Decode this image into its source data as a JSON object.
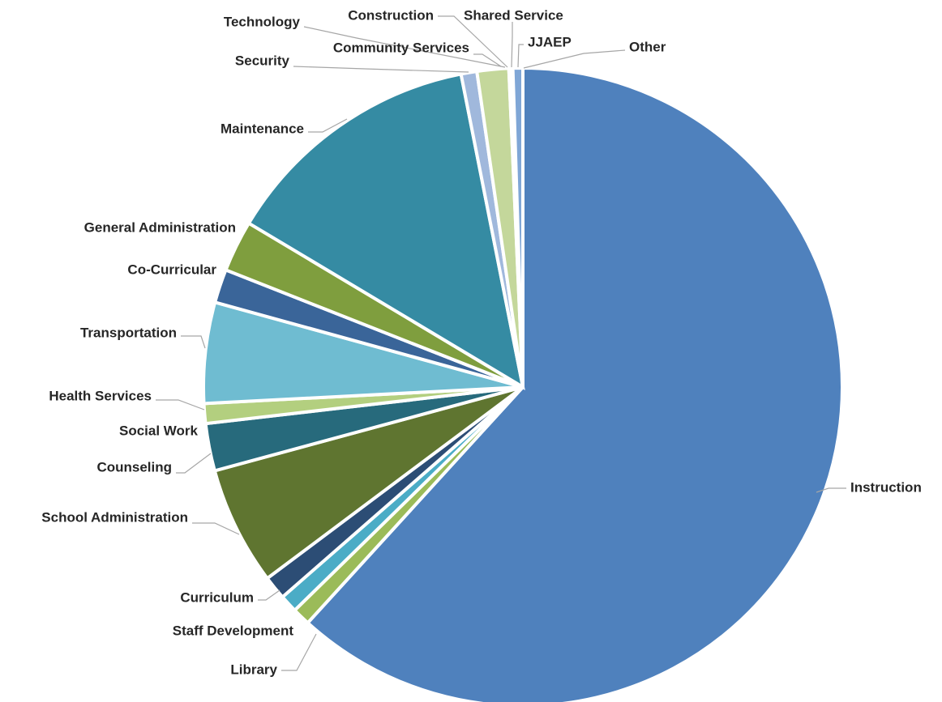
{
  "chart_data": {
    "type": "pie",
    "title": "",
    "start_angle_deg": 0,
    "direction": "clockwise",
    "slices": [
      {
        "label": "Instruction",
        "value": 61.7,
        "color": "#4f81bd"
      },
      {
        "label": "Library",
        "value": 0.9,
        "color": "#9bbb59"
      },
      {
        "label": "Staff Development",
        "value": 0.9,
        "color": "#4bacc6"
      },
      {
        "label": "Curriculum",
        "value": 1.2,
        "color": "#2c4d75"
      },
      {
        "label": "School Administration",
        "value": 6.0,
        "color": "#5f7530"
      },
      {
        "label": "Counseling",
        "value": 2.4,
        "color": "#276a7c"
      },
      {
        "label": "Social Work",
        "value": 0.0,
        "color": "#b9cde5"
      },
      {
        "label": "Health Services",
        "value": 1.0,
        "color": "#b3cf7f"
      },
      {
        "label": "Transportation",
        "value": 5.1,
        "color": "#6fbcd1"
      },
      {
        "label": "Co-Curricular",
        "value": 1.7,
        "color": "#3a6599"
      },
      {
        "label": "General Administration",
        "value": 2.6,
        "color": "#7f9e3e"
      },
      {
        "label": "Maintenance",
        "value": 13.3,
        "color": "#358ba3"
      },
      {
        "label": "Security",
        "value": 0.8,
        "color": "#a0b8dc"
      },
      {
        "label": "Technology",
        "value": 0.0,
        "color": "#ccdcae"
      },
      {
        "label": "Community Services",
        "value": 1.6,
        "color": "#c4d79b"
      },
      {
        "label": "Construction",
        "value": 0.0,
        "color": "#4f81bd"
      },
      {
        "label": "Shared Service",
        "value": 0.1,
        "color": "#9bbb59"
      },
      {
        "label": "JJAEP",
        "value": 0.1,
        "color": "#4bacc6"
      },
      {
        "label": "Other",
        "value": 0.5,
        "color": "#7fa6d6"
      }
    ]
  }
}
